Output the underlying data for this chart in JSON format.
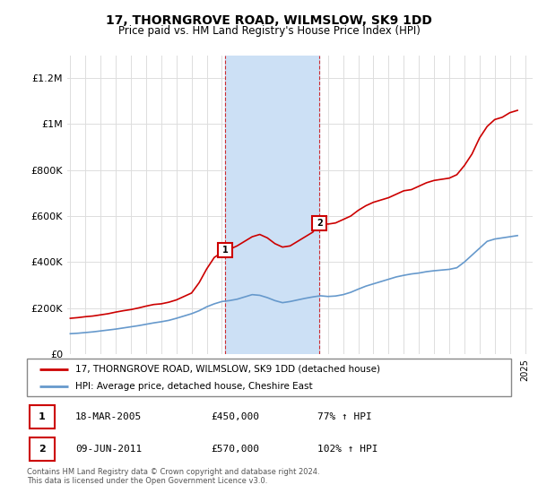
{
  "title": "17, THORNGROVE ROAD, WILMSLOW, SK9 1DD",
  "subtitle": "Price paid vs. HM Land Registry's House Price Index (HPI)",
  "title_fontsize": 10,
  "subtitle_fontsize": 8.5,
  "ylabel_ticks": [
    "£0",
    "£200K",
    "£400K",
    "£600K",
    "£800K",
    "£1M",
    "£1.2M"
  ],
  "ytick_vals": [
    0,
    200000,
    400000,
    600000,
    800000,
    1000000,
    1200000
  ],
  "ylim": [
    0,
    1300000
  ],
  "xlim_start": 1994.8,
  "xlim_end": 2025.5,
  "legend_line1": "17, THORNGROVE ROAD, WILMSLOW, SK9 1DD (detached house)",
  "legend_line2": "HPI: Average price, detached house, Cheshire East",
  "transaction1_date": "18-MAR-2005",
  "transaction1_price": "£450,000",
  "transaction1_hpi": "77% ↑ HPI",
  "transaction1_year": 2005.2,
  "transaction1_price_val": 450000,
  "transaction2_date": "09-JUN-2011",
  "transaction2_price": "£570,000",
  "transaction2_hpi": "102% ↑ HPI",
  "transaction2_year": 2011.44,
  "transaction2_price_val": 570000,
  "shade_color": "#cce0f5",
  "red_color": "#cc0000",
  "blue_color": "#6699cc",
  "footnote": "Contains HM Land Registry data © Crown copyright and database right 2024.\nThis data is licensed under the Open Government Licence v3.0.",
  "red_data_x": [
    1995.0,
    1995.5,
    1996.0,
    1996.5,
    1997.0,
    1997.5,
    1998.0,
    1998.5,
    1999.0,
    1999.5,
    2000.0,
    2000.5,
    2001.0,
    2001.5,
    2002.0,
    2002.5,
    2003.0,
    2003.5,
    2004.0,
    2004.5,
    2005.2,
    2005.5,
    2006.0,
    2006.5,
    2007.0,
    2007.5,
    2008.0,
    2008.5,
    2009.0,
    2009.5,
    2010.0,
    2010.5,
    2011.0,
    2011.44,
    2011.5,
    2012.0,
    2012.5,
    2013.0,
    2013.5,
    2014.0,
    2014.5,
    2015.0,
    2015.5,
    2016.0,
    2016.5,
    2017.0,
    2017.5,
    2018.0,
    2018.5,
    2019.0,
    2019.5,
    2020.0,
    2020.5,
    2021.0,
    2021.5,
    2022.0,
    2022.5,
    2023.0,
    2023.5,
    2024.0,
    2024.5
  ],
  "red_data_y": [
    155000,
    158000,
    162000,
    165000,
    170000,
    175000,
    182000,
    188000,
    193000,
    200000,
    208000,
    215000,
    218000,
    225000,
    235000,
    250000,
    265000,
    310000,
    370000,
    420000,
    450000,
    455000,
    470000,
    490000,
    510000,
    520000,
    505000,
    480000,
    465000,
    470000,
    490000,
    510000,
    530000,
    570000,
    575000,
    565000,
    570000,
    585000,
    600000,
    625000,
    645000,
    660000,
    670000,
    680000,
    695000,
    710000,
    715000,
    730000,
    745000,
    755000,
    760000,
    765000,
    780000,
    820000,
    870000,
    940000,
    990000,
    1020000,
    1030000,
    1050000,
    1060000
  ],
  "blue_data_x": [
    1995.0,
    1995.5,
    1996.0,
    1996.5,
    1997.0,
    1997.5,
    1998.0,
    1998.5,
    1999.0,
    1999.5,
    2000.0,
    2000.5,
    2001.0,
    2001.5,
    2002.0,
    2002.5,
    2003.0,
    2003.5,
    2004.0,
    2004.5,
    2005.0,
    2005.5,
    2006.0,
    2006.5,
    2007.0,
    2007.5,
    2008.0,
    2008.5,
    2009.0,
    2009.5,
    2010.0,
    2010.5,
    2011.0,
    2011.5,
    2012.0,
    2012.5,
    2013.0,
    2013.5,
    2014.0,
    2014.5,
    2015.0,
    2015.5,
    2016.0,
    2016.5,
    2017.0,
    2017.5,
    2018.0,
    2018.5,
    2019.0,
    2019.5,
    2020.0,
    2020.5,
    2021.0,
    2021.5,
    2022.0,
    2022.5,
    2023.0,
    2023.5,
    2024.0,
    2024.5
  ],
  "blue_data_y": [
    88000,
    90000,
    93000,
    96000,
    100000,
    104000,
    108000,
    113000,
    118000,
    123000,
    129000,
    135000,
    140000,
    146000,
    155000,
    165000,
    175000,
    188000,
    205000,
    218000,
    228000,
    232000,
    238000,
    248000,
    258000,
    255000,
    245000,
    232000,
    223000,
    228000,
    235000,
    242000,
    248000,
    253000,
    250000,
    252000,
    258000,
    268000,
    282000,
    295000,
    305000,
    315000,
    325000,
    335000,
    342000,
    348000,
    352000,
    358000,
    362000,
    365000,
    368000,
    375000,
    400000,
    430000,
    460000,
    490000,
    500000,
    505000,
    510000,
    515000
  ]
}
